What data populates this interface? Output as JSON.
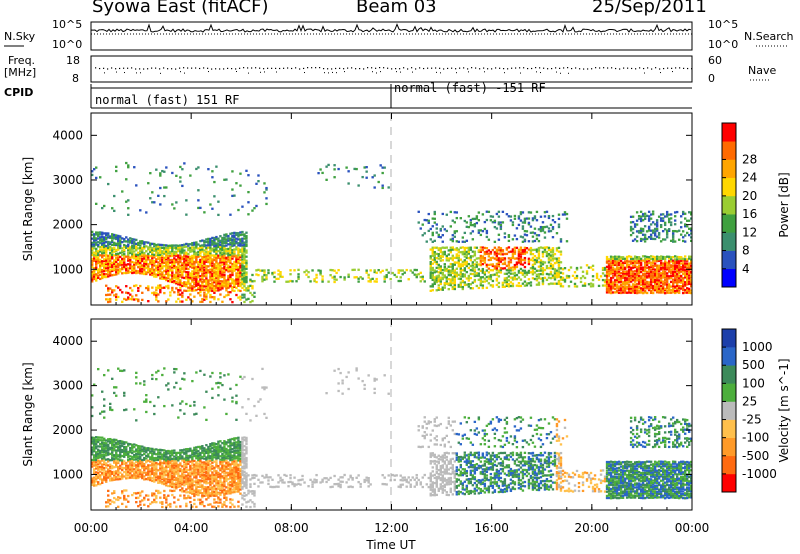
{
  "header": {
    "station": "Syowa East (fitACF)",
    "beam": "Beam 03",
    "date": "25/Sep/2011"
  },
  "summary_panels": {
    "nsky_label": "N.Sky",
    "nsearch_label": "N.Search",
    "scale_top": "10^5",
    "scale_bottom": "10^0",
    "freq_label_line1": "Freq.",
    "freq_label_line2": "[MHz]",
    "freq_ticks": [
      "18",
      "8"
    ],
    "nave_label": "Nave",
    "nave_ticks": [
      "60",
      "0"
    ],
    "cpid_label": "CPID",
    "cpid_segments": [
      "normal (fast) 151 RF",
      "normal (fast) -151 RF"
    ]
  },
  "chart_data": [
    {
      "type": "heatmap",
      "title": "",
      "xlabel": "Time UT",
      "ylabel": "Slant Range [km]",
      "x_ticks": [
        "00:00",
        "04:00",
        "08:00",
        "12:00",
        "16:00",
        "20:00",
        "00:00"
      ],
      "y_ticks": [
        "1000",
        "2000",
        "3000",
        "4000"
      ],
      "ylim": [
        200,
        4500
      ],
      "colorbar": {
        "label": "Power [dB]",
        "ticks": [
          "4",
          "8",
          "12",
          "16",
          "20",
          "24",
          "28"
        ],
        "colors": [
          "#0000ff",
          "#2a52be",
          "#3b8f6e",
          "#3fa03f",
          "#9acd32",
          "#ffd700",
          "#ffa500",
          "#ff6a00",
          "#ff0000"
        ]
      },
      "description_values": {
        "echo_bands_km": [
          [
            700,
            1600
          ],
          [
            600,
            1500
          ],
          [
            500,
            1400
          ]
        ],
        "active_periods_ut": [
          [
            "00:00",
            "06:00"
          ],
          [
            "14:00",
            "18:00"
          ],
          [
            "21:00",
            "24:00"
          ]
        ]
      }
    },
    {
      "type": "heatmap",
      "title": "",
      "xlabel": "Time UT",
      "ylabel": "Slant Range [km]",
      "x_ticks": [
        "00:00",
        "04:00",
        "08:00",
        "12:00",
        "16:00",
        "20:00",
        "00:00"
      ],
      "y_ticks": [
        "1000",
        "2000",
        "3000",
        "4000"
      ],
      "ylim": [
        200,
        4500
      ],
      "colorbar": {
        "label": "Velocity [m s^-1]",
        "ticks": [
          "1000",
          "500",
          "100",
          "25",
          "-25",
          "-100",
          "-500",
          "-1000"
        ],
        "colors": [
          "#1c3faa",
          "#2a66c8",
          "#3c8a5a",
          "#4cae3c",
          "#bbbbbb",
          "#ffc04c",
          "#ff9a28",
          "#ff6a10",
          "#ff0000"
        ]
      }
    }
  ],
  "time_axis": {
    "ticks": [
      "00:00",
      "04:00",
      "08:00",
      "12:00",
      "16:00",
      "20:00",
      "00:00"
    ],
    "label": "Time UT"
  }
}
